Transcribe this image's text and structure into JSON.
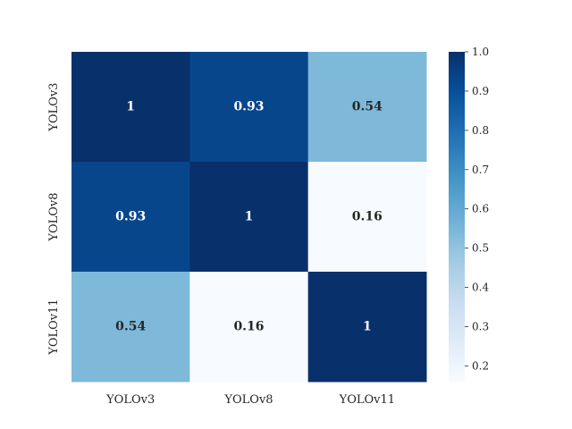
{
  "chart_data": {
    "type": "heatmap",
    "title": "",
    "xlabel": "",
    "ylabel": "",
    "x_categories": [
      "YOLOv3",
      "YOLOv8",
      "YOLOv11"
    ],
    "y_categories": [
      "YOLOv3",
      "YOLOv8",
      "YOLOv11"
    ],
    "values": [
      [
        1,
        0.93,
        0.54
      ],
      [
        0.93,
        1,
        0.16
      ],
      [
        0.54,
        0.16,
        1
      ]
    ],
    "annotations": [
      [
        "1",
        "0.93",
        "0.54"
      ],
      [
        "0.93",
        "1",
        "0.16"
      ],
      [
        "0.54",
        "0.16",
        "1"
      ]
    ],
    "colormap": "Blues",
    "colorbar": {
      "range": [
        0.16,
        1.0
      ],
      "ticks": [
        0.2,
        0.3,
        0.4,
        0.5,
        0.6,
        0.7,
        0.8,
        0.9,
        1.0
      ],
      "tick_labels": [
        "0.2",
        "0.3",
        "0.4",
        "0.5",
        "0.6",
        "0.7",
        "0.8",
        "0.9",
        "1.0"
      ]
    }
  }
}
